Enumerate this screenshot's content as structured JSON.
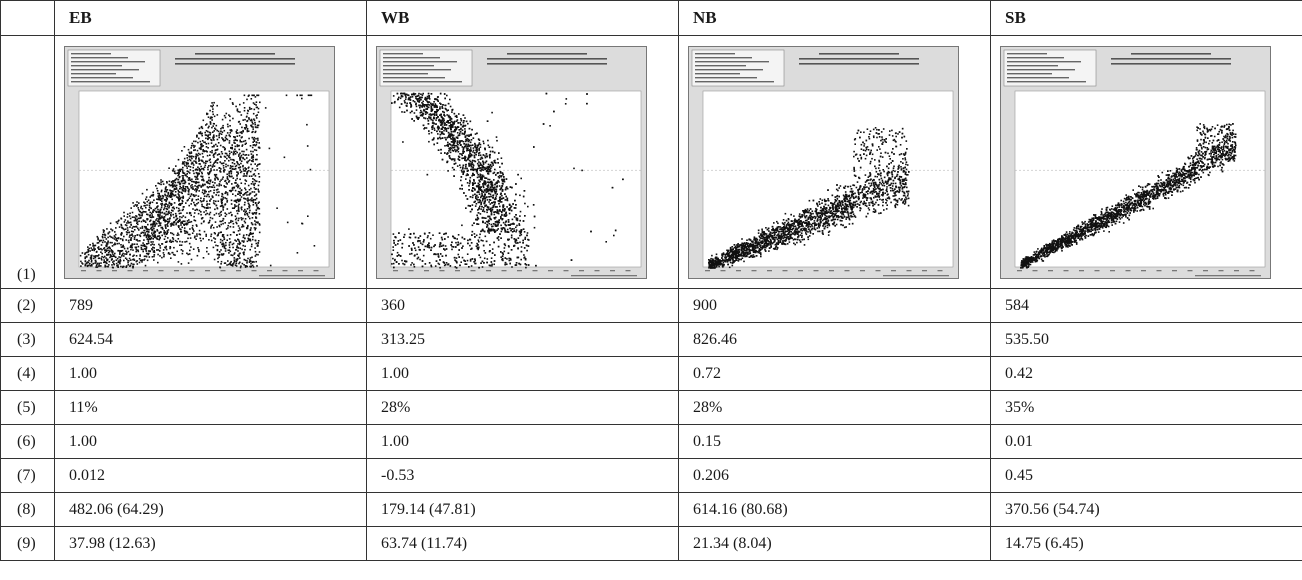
{
  "header": {
    "corner": "",
    "columns": [
      "EB",
      "WB",
      "NB",
      "SB"
    ]
  },
  "rows": [
    {
      "label": "(1)",
      "values": []
    },
    {
      "label": "(2)",
      "values": [
        "789",
        "360",
        "900",
        "584"
      ]
    },
    {
      "label": "(3)",
      "values": [
        "624.54",
        "313.25",
        "826.46",
        "535.50"
      ]
    },
    {
      "label": "(4)",
      "values": [
        "1.00",
        "1.00",
        "0.72",
        "0.42"
      ]
    },
    {
      "label": "(5)",
      "values": [
        "11%",
        "28%",
        "28%",
        "35%"
      ]
    },
    {
      "label": "(6)",
      "values": [
        "1.00",
        "1.00",
        "0.15",
        "0.01"
      ]
    },
    {
      "label": "(7)",
      "values": [
        "0.012",
        "-0.53",
        "0.206",
        "0.45"
      ]
    },
    {
      "label": "(8)",
      "values": [
        "482.06 (64.29)",
        "179.14 (47.81)",
        "614.16 (80.68)",
        "370.56 (54.74)"
      ]
    },
    {
      "label": "(9)",
      "values": [
        "37.98 (12.63)",
        "63.74 (11.74)",
        "21.34 (8.04)",
        "14.75 (6.45)"
      ]
    }
  ],
  "plots": [
    {
      "direction": "EB",
      "shape": "eb"
    },
    {
      "direction": "WB",
      "shape": "wb"
    },
    {
      "direction": "NB",
      "shape": "nb"
    },
    {
      "direction": "SB",
      "shape": "sb"
    }
  ],
  "colors": {
    "border": "#333333",
    "plot_bg": "#dcdcdc",
    "plot_area": "#ffffff",
    "points": "#111111"
  }
}
